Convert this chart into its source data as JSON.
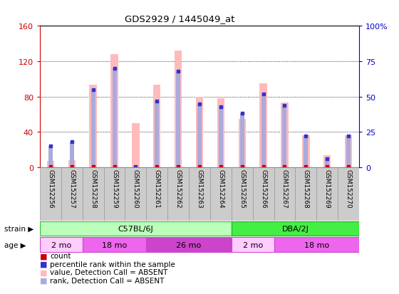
{
  "title": "GDS2929 / 1445049_at",
  "samples": [
    "GSM152256",
    "GSM152257",
    "GSM152258",
    "GSM152259",
    "GSM152260",
    "GSM152261",
    "GSM152262",
    "GSM152263",
    "GSM152264",
    "GSM152265",
    "GSM152266",
    "GSM152267",
    "GSM152268",
    "GSM152269",
    "GSM152270"
  ],
  "absent_values": [
    7,
    8,
    93,
    128,
    50,
    93,
    132,
    80,
    78,
    55,
    95,
    73,
    36,
    14,
    36
  ],
  "absent_ranks": [
    15,
    18,
    55,
    70,
    0,
    47,
    68,
    45,
    43,
    38,
    52,
    44,
    22,
    6,
    22
  ],
  "count_values": [
    1,
    1,
    1,
    1,
    1,
    1,
    1,
    1,
    1,
    1,
    1,
    1,
    1,
    1,
    1
  ],
  "rank_values": [
    15,
    18,
    55,
    70,
    0,
    47,
    68,
    45,
    43,
    38,
    52,
    44,
    22,
    6,
    22
  ],
  "ylim_left": [
    0,
    160
  ],
  "ylim_right": [
    0,
    100
  ],
  "left_ticks": [
    0,
    40,
    80,
    120,
    160
  ],
  "right_ticks": [
    0,
    25,
    50,
    75,
    100
  ],
  "color_absent_value": "#ffbbbb",
  "color_absent_rank": "#aaaadd",
  "color_count": "#cc0000",
  "color_rank": "#3333cc",
  "strain_c57": {
    "label": "C57BL/6J",
    "start": 0,
    "end": 9,
    "color": "#bbffbb",
    "edge": "#33bb33"
  },
  "strain_dba": {
    "label": "DBA/2J",
    "start": 9,
    "end": 15,
    "color": "#44ee44",
    "edge": "#22aa22"
  },
  "age_groups": [
    {
      "label": "2 mo",
      "start": 0,
      "end": 2,
      "color": "#ffccff",
      "edge": "#cc44cc"
    },
    {
      "label": "18 mo",
      "start": 2,
      "end": 5,
      "color": "#ee66ee",
      "edge": "#cc44cc"
    },
    {
      "label": "26 mo",
      "start": 5,
      "end": 9,
      "color": "#cc44cc",
      "edge": "#cc44cc"
    },
    {
      "label": "2 mo",
      "start": 9,
      "end": 11,
      "color": "#ffccff",
      "edge": "#cc44cc"
    },
    {
      "label": "18 mo",
      "start": 11,
      "end": 15,
      "color": "#ee66ee",
      "edge": "#cc44cc"
    }
  ],
  "background_color": "#ffffff",
  "grid_color": "#000000",
  "left_label_color": "#cc0000",
  "right_label_color": "#0000cc"
}
